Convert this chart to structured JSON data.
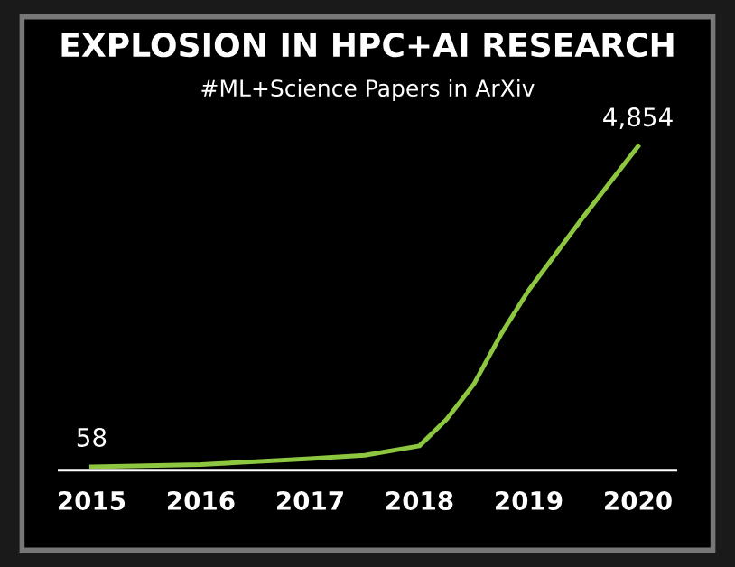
{
  "chart_data": {
    "type": "line",
    "title": "EXPLOSION IN HPC+AI RESEARCH",
    "subtitle": "#ML+Science Papers in ArXiv",
    "x": [
      2015,
      2016,
      2017,
      2017.5,
      2018,
      2018.25,
      2018.5,
      2018.75,
      2019,
      2019.5,
      2020
    ],
    "series": [
      {
        "color": "#8dc63f",
        "values": [
          58,
          90,
          180,
          230,
          370,
          770,
          1300,
          2050,
          2700,
          3800,
          4854
        ],
        "value_labels": [
          "58",
          null,
          null,
          null,
          null,
          null,
          null,
          null,
          null,
          null,
          "4,854"
        ]
      }
    ],
    "xlim": [
      2014.7,
      2020.35
    ],
    "xticks": [
      2015,
      2016,
      2017,
      2018,
      2019,
      2020
    ],
    "grid": false,
    "legend": false,
    "marker": "none",
    "line_style": "solid"
  }
}
